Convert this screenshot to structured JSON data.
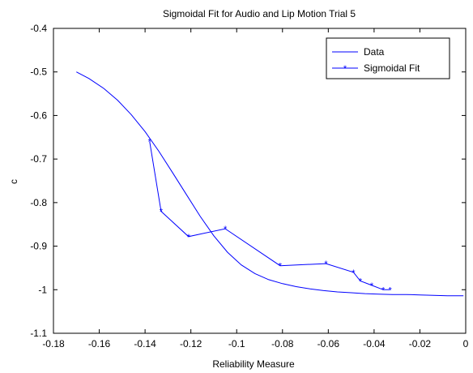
{
  "chart_data": {
    "type": "line",
    "title": "Sigmoidal Fit for Audio and Lip Motion Trial 5",
    "xlabel": "Reliability Measure",
    "ylabel": "c",
    "xlim": [
      -0.18,
      0
    ],
    "ylim": [
      -1.1,
      -0.4
    ],
    "xticks": [
      -0.18,
      -0.16,
      -0.14,
      -0.12,
      -0.1,
      -0.08,
      -0.06,
      -0.04,
      -0.02,
      0
    ],
    "yticks": [
      -0.4,
      -0.5,
      -0.6,
      -0.7,
      -0.8,
      -0.9,
      -1,
      -1.1
    ],
    "xtick_labels": [
      "-0.18",
      "-0.16",
      "-0.14",
      "-0.12",
      "-0.1",
      "-0.08",
      "-0.06",
      "-0.04",
      "-0.02",
      "0"
    ],
    "ytick_labels": [
      "-0.4",
      "-0.5",
      "-0.6",
      "-0.7",
      "-0.8",
      "-0.9",
      "-1",
      "-1.1"
    ],
    "grid": false,
    "legend_position": "top-right",
    "series": [
      {
        "name": "Data",
        "color": "#0000ff",
        "marker": "none",
        "x": [
          -0.17,
          -0.1645,
          -0.158,
          -0.152,
          -0.146,
          -0.14,
          -0.134,
          -0.128,
          -0.122,
          -0.116,
          -0.11,
          -0.104,
          -0.098,
          -0.092,
          -0.086,
          -0.08,
          -0.074,
          -0.068,
          -0.062,
          -0.056,
          -0.05,
          -0.044,
          -0.038,
          -0.032,
          -0.026,
          -0.02,
          -0.014,
          -0.008,
          -0.003,
          -0.001
        ],
        "y": [
          -0.5,
          -0.515,
          -0.538,
          -0.565,
          -0.598,
          -0.637,
          -0.682,
          -0.731,
          -0.781,
          -0.831,
          -0.876,
          -0.914,
          -0.943,
          -0.963,
          -0.977,
          -0.986,
          -0.993,
          -0.998,
          -1.002,
          -1.005,
          -1.007,
          -1.009,
          -1.01,
          -1.011,
          -1.011,
          -1.012,
          -1.013,
          -1.014,
          -1.014,
          -1.014
        ]
      },
      {
        "name": "Sigmoidal Fit",
        "color": "#0000ff",
        "marker": "*",
        "x": [
          -0.138,
          -0.133,
          -0.121,
          -0.105,
          -0.081,
          -0.061,
          -0.049,
          -0.046,
          -0.041,
          -0.036,
          -0.033
        ],
        "y": [
          -0.66,
          -0.82,
          -0.878,
          -0.86,
          -0.945,
          -0.94,
          -0.96,
          -0.98,
          -0.99,
          -1.0,
          -1.0
        ]
      }
    ]
  }
}
